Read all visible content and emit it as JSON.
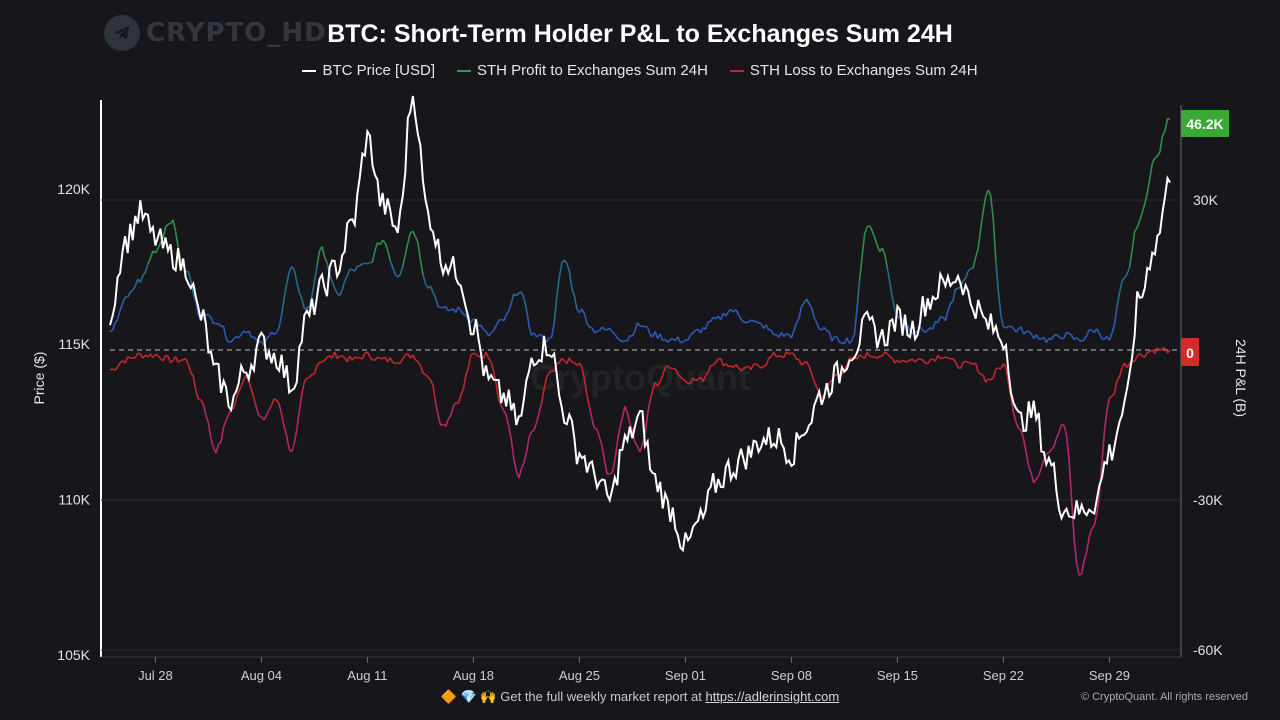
{
  "watermark": {
    "text": "CRYPTO_HD",
    "icon": "telegram-icon"
  },
  "title": "BTC: Short-Term Holder P&L to Exchanges Sum 24H",
  "legend": [
    {
      "label": "BTC Price [USD]",
      "color": "#ffffff"
    },
    {
      "label": "STH Profit to Exchanges Sum 24H",
      "color": "#3a9a44"
    },
    {
      "label": "STH Loss to Exchanges Sum 24H",
      "color": "#c0272d"
    }
  ],
  "footer": {
    "emoji": "🔶 💎 🙌",
    "text": "Get the full weekly market report at",
    "link": "https://adlerinsight.com"
  },
  "copyright": "© CryptoQuant. All rights reserved",
  "center_watermark": "CryptoQuant",
  "chart_data": {
    "type": "line",
    "x_tick_labels": [
      "Jul 28",
      "Aug 04",
      "Aug 11",
      "Aug 18",
      "Aug 25",
      "Sep 01",
      "Sep 08",
      "Sep 15",
      "Sep 22",
      "Sep 29"
    ],
    "x_range": [
      "2025-07-25",
      "2025-10-03"
    ],
    "y_left": {
      "label": "Price ($)",
      "ticks": [
        "105K",
        "110K",
        "115K",
        "120K"
      ],
      "tick_values": [
        105000,
        110000,
        115000,
        120000
      ],
      "range": [
        105000,
        123500
      ]
    },
    "y_right": {
      "label": "24H P&L (B)",
      "ticks": [
        "-60K",
        "-30K",
        "0",
        "30K"
      ],
      "tick_values": [
        -60000,
        -30000,
        0,
        30000
      ],
      "range": [
        -60000,
        50000
      ]
    },
    "last_value_badges": [
      {
        "text": "46.2K",
        "color": "#3aa835"
      },
      {
        "text": "0",
        "color": "#d42a2a"
      }
    ],
    "zero_line": "dashed",
    "series": [
      {
        "name": "BTC Price [USD]",
        "axis": "left",
        "color": "#ffffff",
        "x": [
          "2025-07-25",
          "2025-07-26",
          "2025-07-27",
          "2025-07-28",
          "2025-07-29",
          "2025-07-30",
          "2025-07-31",
          "2025-08-01",
          "2025-08-02",
          "2025-08-03",
          "2025-08-04",
          "2025-08-05",
          "2025-08-06",
          "2025-08-07",
          "2025-08-08",
          "2025-08-09",
          "2025-08-10",
          "2025-08-11",
          "2025-08-12",
          "2025-08-13",
          "2025-08-14",
          "2025-08-15",
          "2025-08-16",
          "2025-08-17",
          "2025-08-18",
          "2025-08-19",
          "2025-08-20",
          "2025-08-21",
          "2025-08-22",
          "2025-08-23",
          "2025-08-24",
          "2025-08-25",
          "2025-08-26",
          "2025-08-27",
          "2025-08-28",
          "2025-08-29",
          "2025-08-30",
          "2025-08-31",
          "2025-09-01",
          "2025-09-02",
          "2025-09-03",
          "2025-09-04",
          "2025-09-05",
          "2025-09-06",
          "2025-09-07",
          "2025-09-08",
          "2025-09-09",
          "2025-09-10",
          "2025-09-11",
          "2025-09-12",
          "2025-09-13",
          "2025-09-14",
          "2025-09-15",
          "2025-09-16",
          "2025-09-17",
          "2025-09-18",
          "2025-09-19",
          "2025-09-20",
          "2025-09-21",
          "2025-09-22",
          "2025-09-23",
          "2025-09-24",
          "2025-09-25",
          "2025-09-26",
          "2025-09-27",
          "2025-09-28",
          "2025-09-29",
          "2025-09-30",
          "2025-10-01",
          "2025-10-02",
          "2025-10-03"
        ],
        "y": [
          116000,
          118300,
          119200,
          118400,
          117900,
          117500,
          115900,
          114000,
          113200,
          114200,
          115000,
          114600,
          113700,
          115800,
          116800,
          117500,
          118900,
          121600,
          119500,
          118700,
          123000,
          119200,
          117700,
          117300,
          115600,
          113800,
          113300,
          112500,
          114700,
          115000,
          112800,
          111500,
          110800,
          110000,
          111800,
          112600,
          110600,
          109700,
          108500,
          109300,
          110500,
          111000,
          111400,
          111900,
          112000,
          111500,
          112400,
          113400,
          114000,
          114800,
          115600,
          115200,
          115800,
          115500,
          116400,
          116900,
          117200,
          116300,
          115600,
          115200,
          112500,
          112800,
          111200,
          109700,
          109600,
          109900,
          111500,
          112900,
          116500,
          118200,
          120200
        ]
      },
      {
        "name": "STH Profit to Exchanges Sum 24H",
        "axis": "right",
        "color": "#3a9a44",
        "x": [
          "2025-07-25",
          "2025-07-26",
          "2025-07-27",
          "2025-07-28",
          "2025-07-29",
          "2025-07-30",
          "2025-07-31",
          "2025-08-01",
          "2025-08-02",
          "2025-08-03",
          "2025-08-04",
          "2025-08-05",
          "2025-08-06",
          "2025-08-07",
          "2025-08-08",
          "2025-08-09",
          "2025-08-10",
          "2025-08-11",
          "2025-08-12",
          "2025-08-13",
          "2025-08-14",
          "2025-08-15",
          "2025-08-16",
          "2025-08-17",
          "2025-08-18",
          "2025-08-19",
          "2025-08-20",
          "2025-08-21",
          "2025-08-22",
          "2025-08-23",
          "2025-08-24",
          "2025-08-25",
          "2025-08-26",
          "2025-08-27",
          "2025-08-28",
          "2025-08-29",
          "2025-08-30",
          "2025-08-31",
          "2025-09-01",
          "2025-09-02",
          "2025-09-03",
          "2025-09-04",
          "2025-09-05",
          "2025-09-06",
          "2025-09-07",
          "2025-09-08",
          "2025-09-09",
          "2025-09-10",
          "2025-09-11",
          "2025-09-12",
          "2025-09-13",
          "2025-09-14",
          "2025-09-15",
          "2025-09-16",
          "2025-09-17",
          "2025-09-18",
          "2025-09-19",
          "2025-09-20",
          "2025-09-21",
          "2025-09-22",
          "2025-09-23",
          "2025-09-24",
          "2025-09-25",
          "2025-09-26",
          "2025-09-27",
          "2025-09-28",
          "2025-09-29",
          "2025-09-30",
          "2025-10-01",
          "2025-10-02",
          "2025-10-03"
        ],
        "y": [
          3000,
          10000,
          14000,
          20000,
          26000,
          16000,
          7000,
          6000,
          2000,
          4000,
          1000,
          4000,
          16000,
          8000,
          20000,
          11000,
          16000,
          17000,
          22000,
          15000,
          24000,
          13000,
          8000,
          8000,
          6000,
          3000,
          6000,
          12000,
          3000,
          2000,
          18000,
          8000,
          4000,
          4000,
          2000,
          5000,
          3000,
          2000,
          2000,
          4000,
          6000,
          8000,
          6000,
          5000,
          3000,
          3000,
          10000,
          4000,
          2000,
          2000,
          25000,
          20000,
          7000,
          4000,
          4000,
          6000,
          12000,
          17000,
          32000,
          5000,
          4000,
          3000,
          2000,
          3000,
          2000,
          4000,
          2000,
          14000,
          26000,
          38000,
          46200
        ]
      },
      {
        "name": "STH Loss to Exchanges Sum 24H",
        "axis": "right",
        "color": "#c0272d",
        "x": [
          "2025-07-25",
          "2025-07-26",
          "2025-07-27",
          "2025-07-28",
          "2025-07-29",
          "2025-07-30",
          "2025-07-31",
          "2025-08-01",
          "2025-08-02",
          "2025-08-03",
          "2025-08-04",
          "2025-08-05",
          "2025-08-06",
          "2025-08-07",
          "2025-08-08",
          "2025-08-09",
          "2025-08-10",
          "2025-08-11",
          "2025-08-12",
          "2025-08-13",
          "2025-08-14",
          "2025-08-15",
          "2025-08-16",
          "2025-08-17",
          "2025-08-18",
          "2025-08-19",
          "2025-08-20",
          "2025-08-21",
          "2025-08-22",
          "2025-08-23",
          "2025-08-24",
          "2025-08-25",
          "2025-08-26",
          "2025-08-27",
          "2025-08-28",
          "2025-08-29",
          "2025-08-30",
          "2025-08-31",
          "2025-09-01",
          "2025-09-02",
          "2025-09-03",
          "2025-09-04",
          "2025-09-05",
          "2025-09-06",
          "2025-09-07",
          "2025-09-08",
          "2025-09-09",
          "2025-09-10",
          "2025-09-11",
          "2025-09-12",
          "2025-09-13",
          "2025-09-14",
          "2025-09-15",
          "2025-09-16",
          "2025-09-17",
          "2025-09-18",
          "2025-09-19",
          "2025-09-20",
          "2025-09-21",
          "2025-09-22",
          "2025-09-23",
          "2025-09-24",
          "2025-09-25",
          "2025-09-26",
          "2025-09-27",
          "2025-09-28",
          "2025-09-29",
          "2025-09-30",
          "2025-10-01",
          "2025-10-02",
          "2025-10-03"
        ],
        "y": [
          -4000,
          -2000,
          -1000,
          -1000,
          -2000,
          -2000,
          -10000,
          -20000,
          -12000,
          -5000,
          -14000,
          -10000,
          -20000,
          -6000,
          -2000,
          -1000,
          -2000,
          -1000,
          -2000,
          -2000,
          -1000,
          -5000,
          -15000,
          -10000,
          -1000,
          -1000,
          -12000,
          -25000,
          -16000,
          -5000,
          -2000,
          -3000,
          -15000,
          -25000,
          -12000,
          -20000,
          -7000,
          -3000,
          -6000,
          -6000,
          -2000,
          -3000,
          -4000,
          -3000,
          -1000,
          -1000,
          -3000,
          -9000,
          -5000,
          -2000,
          -1000,
          -1000,
          -2000,
          -2000,
          -2000,
          -1000,
          -3000,
          -3000,
          -6000,
          -3000,
          -15000,
          -26000,
          -20000,
          -15000,
          -45000,
          -35000,
          -10000,
          -3000,
          -1000,
          0,
          0
        ]
      }
    ]
  }
}
